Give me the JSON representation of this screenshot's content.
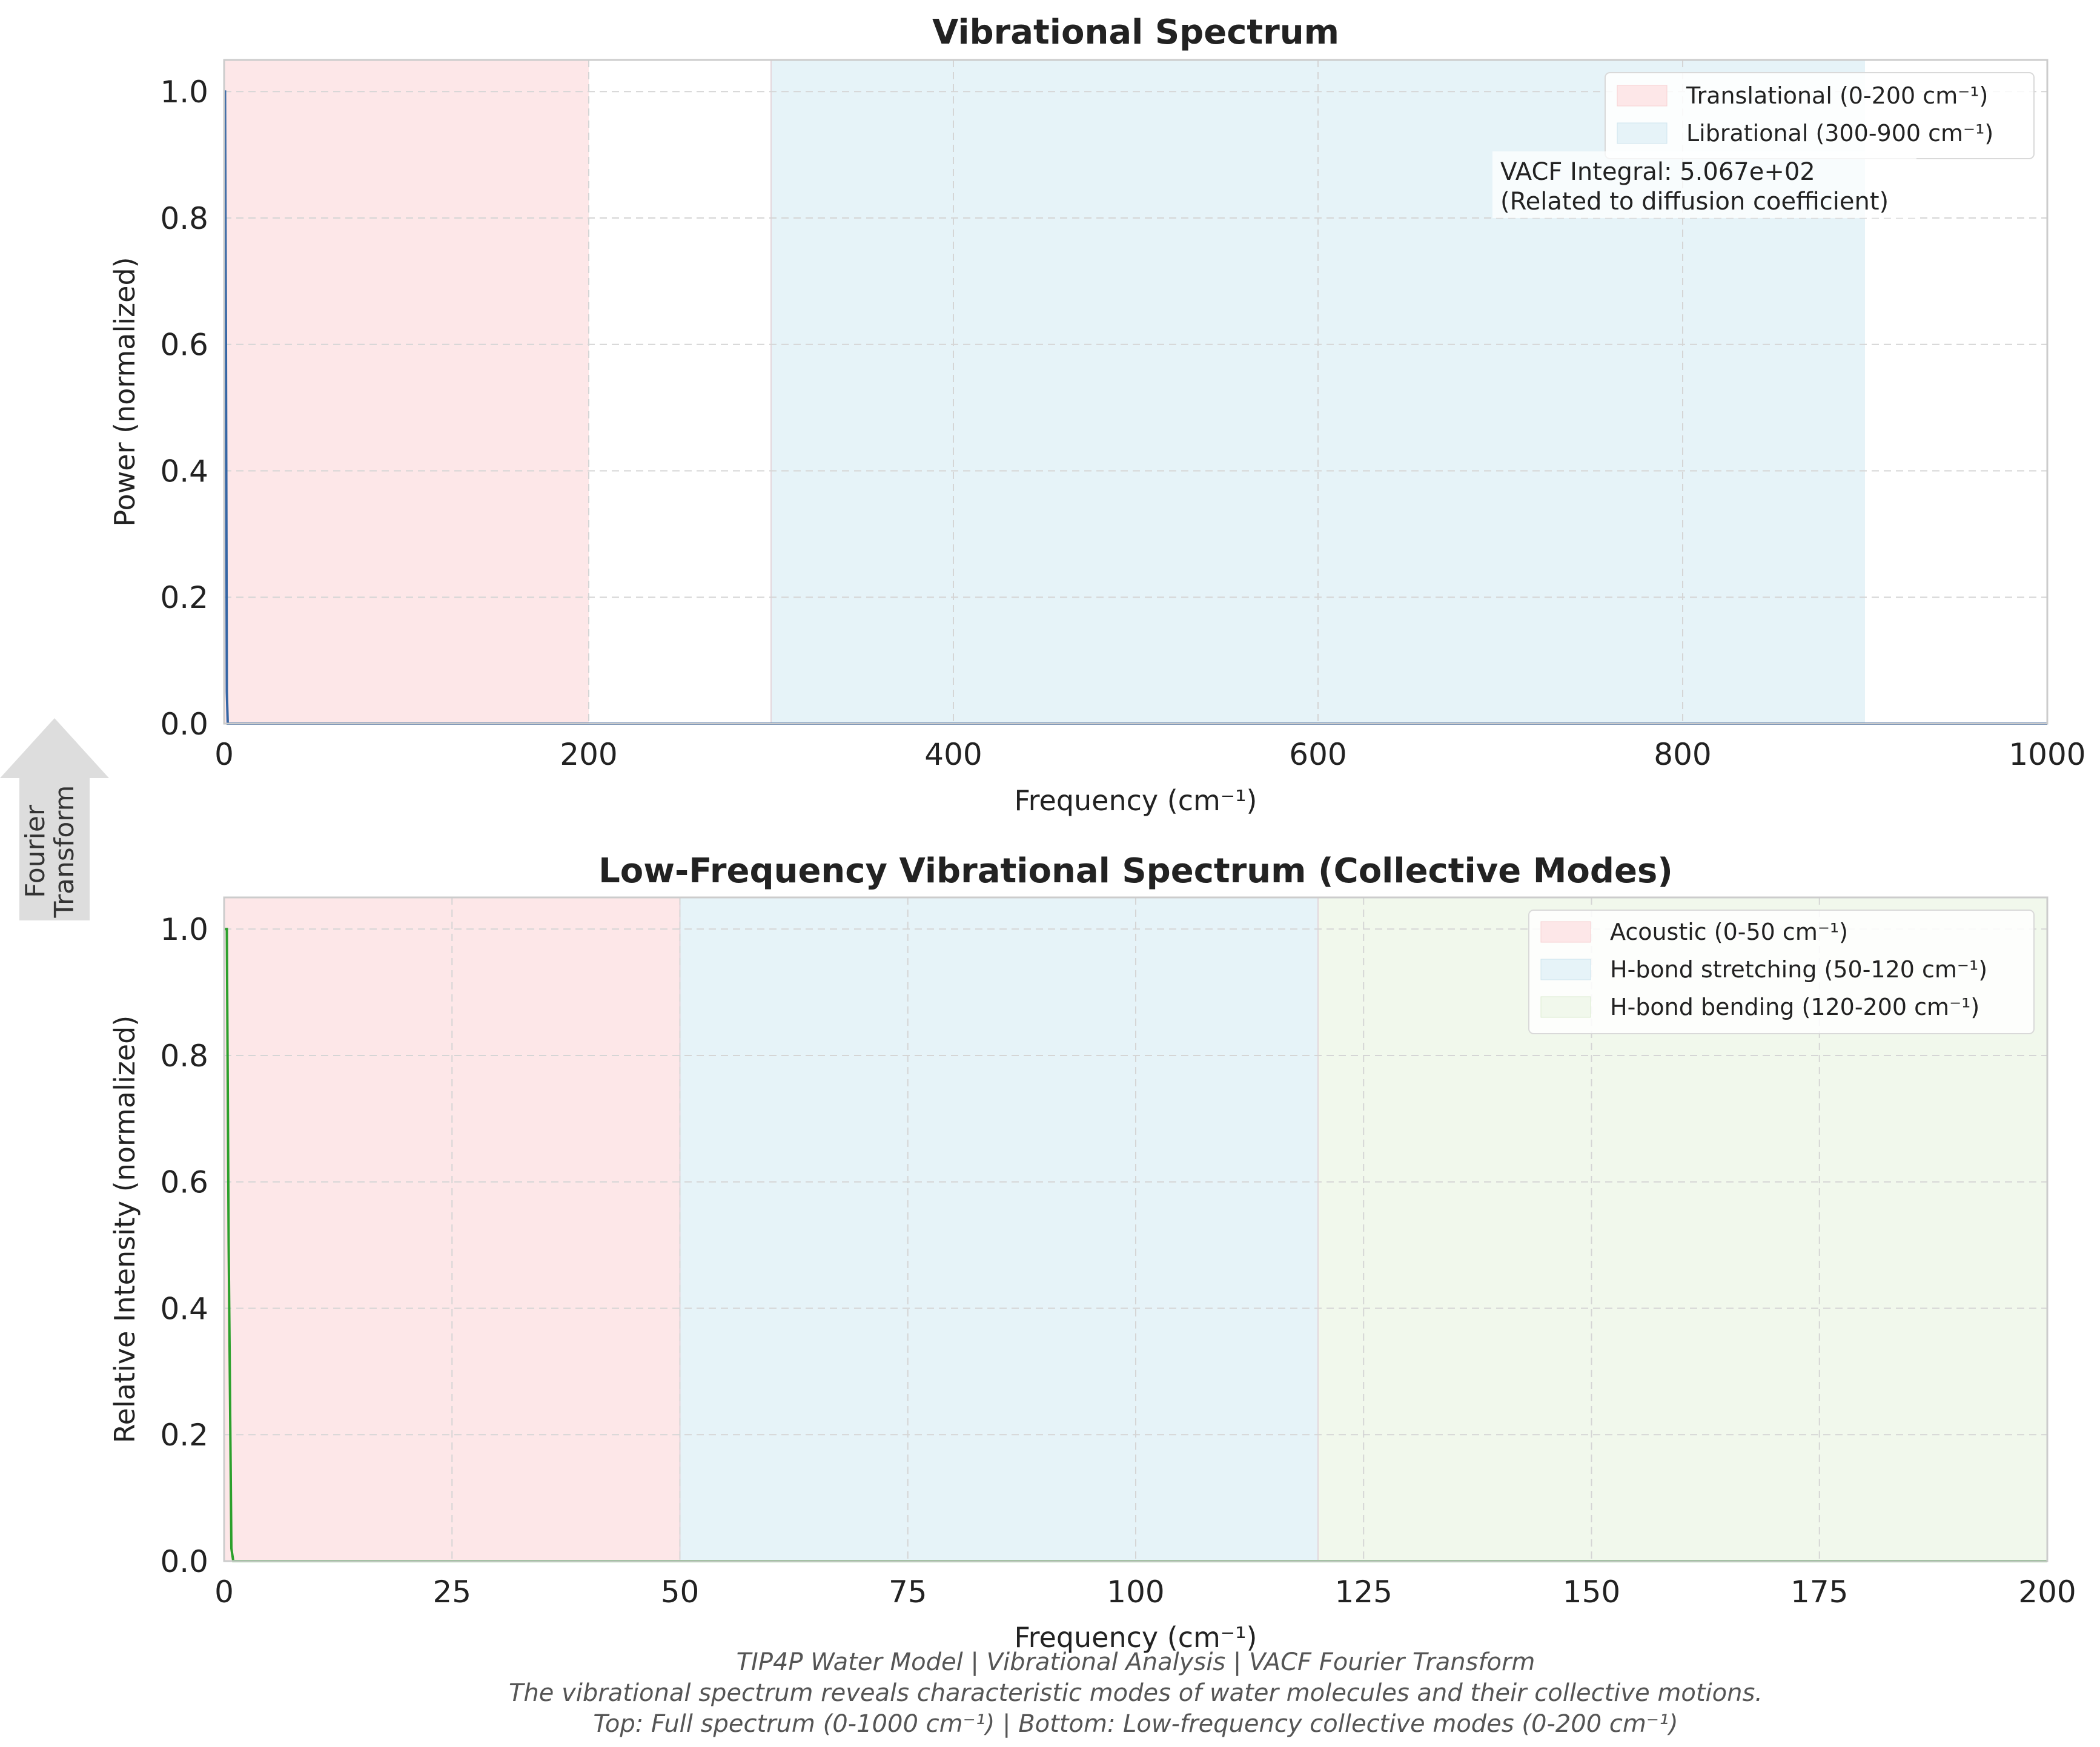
{
  "chart_data": [
    {
      "type": "line",
      "title": "Vibrational Spectrum",
      "xlabel": "Frequency (cm⁻¹)",
      "ylabel": "Power (normalized)",
      "xlim": [
        0,
        1000
      ],
      "ylim": [
        0,
        1.05
      ],
      "xticks": [
        0,
        200,
        400,
        600,
        800,
        1000
      ],
      "yticks": [
        0.0,
        0.2,
        0.4,
        0.6,
        0.8,
        1.0
      ],
      "xtick_labels": [
        "0",
        "200",
        "400",
        "600",
        "800",
        "1000"
      ],
      "ytick_labels": [
        "0.0",
        "0.2",
        "0.4",
        "0.6",
        "0.8",
        "1.0"
      ],
      "grid": true,
      "legend_position": "top-right",
      "series": [
        {
          "x": [
            0,
            0.5,
            1,
            1.5,
            2,
            5,
            10,
            50,
            100,
            500,
            1000
          ],
          "y": [
            1.0,
            1.0,
            0.6,
            0.05,
            0.0,
            0.0,
            0.0,
            0.0,
            0.0,
            0.0,
            0.0
          ],
          "color": "#3465a4"
        }
      ],
      "bands": [
        {
          "name": "Translational (0-200 cm⁻¹)",
          "from": 0,
          "to": 200,
          "color": "#fde7e8"
        },
        {
          "name": "Librational (300-900 cm⁻¹)",
          "from": 300,
          "to": 900,
          "color": "#e6f3f8"
        }
      ],
      "annotation": {
        "line1": "VACF Integral: 5.067e+02",
        "line2": "(Related to diffusion coefficient)"
      }
    },
    {
      "type": "line",
      "title": "Low-Frequency Vibrational Spectrum (Collective Modes)",
      "xlabel": "Frequency (cm⁻¹)",
      "ylabel": "Relative Intensity (normalized)",
      "xlim": [
        0,
        200
      ],
      "ylim": [
        0,
        1.05
      ],
      "xticks": [
        0,
        25,
        50,
        75,
        100,
        125,
        150,
        175,
        200
      ],
      "yticks": [
        0.0,
        0.2,
        0.4,
        0.6,
        0.8,
        1.0
      ],
      "xtick_labels": [
        "0",
        "25",
        "50",
        "75",
        "100",
        "125",
        "150",
        "175",
        "200"
      ],
      "ytick_labels": [
        "0.0",
        "0.2",
        "0.4",
        "0.6",
        "0.8",
        "1.0"
      ],
      "grid": true,
      "legend_position": "top-right",
      "series": [
        {
          "x": [
            0,
            0.3,
            0.5,
            0.8,
            1,
            2,
            10,
            50,
            100,
            200
          ],
          "y": [
            1.0,
            1.0,
            0.5,
            0.02,
            0.0,
            0.0,
            0.0,
            0.0,
            0.0,
            0.0
          ],
          "color": "#2ca02c"
        }
      ],
      "bands": [
        {
          "name": "Acoustic (0-50 cm⁻¹)",
          "from": 0,
          "to": 50,
          "color": "#fde7e8"
        },
        {
          "name": "H-bond stretching (50-120 cm⁻¹)",
          "from": 50,
          "to": 120,
          "color": "#e6f3f8"
        },
        {
          "name": "H-bond bending (120-200 cm⁻¹)",
          "from": 120,
          "to": 200,
          "color": "#f1f8ec"
        }
      ]
    }
  ],
  "side_arrow": {
    "line1": "Fourier",
    "line2": "Transform"
  },
  "footer": {
    "line1": "TIP4P Water Model | Vibrational Analysis | VACF Fourier Transform",
    "line2": "The vibrational spectrum reveals characteristic modes of water molecules and their collective motions.",
    "line3": "Top: Full spectrum (0-1000 cm⁻¹) | Bottom: Low-frequency collective modes (0-200 cm⁻¹)"
  }
}
